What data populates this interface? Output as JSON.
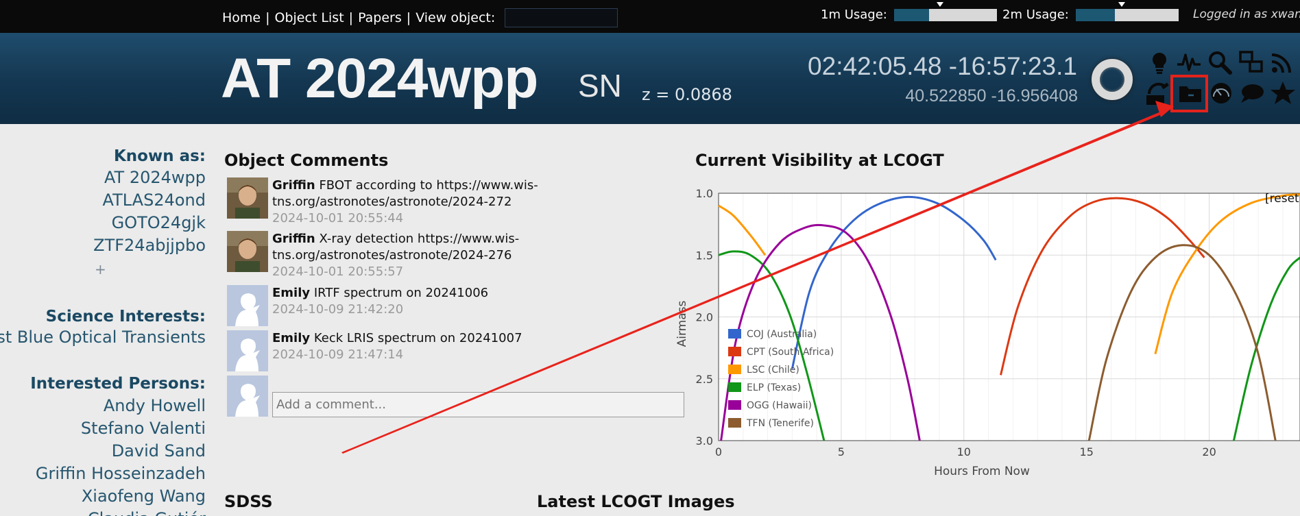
{
  "topbar": {
    "nav": [
      {
        "label": "Home"
      },
      {
        "label": "Object List"
      },
      {
        "label": "Papers"
      },
      {
        "label": "View object:"
      }
    ],
    "view_object_value": "",
    "usage": [
      {
        "label": "1m Usage:",
        "fraction": 0.34,
        "marker": 0.45
      },
      {
        "label": "2m Usage:",
        "fraction": 0.38,
        "marker": 0.45
      }
    ],
    "logged_in": "Logged in as xwang"
  },
  "header": {
    "object_name": "AT 2024wpp",
    "object_type": "SN",
    "redshift": "z = 0.0868",
    "coords_sexagesimal": "02:42:05.48 -16:57:23.1",
    "coords_degrees": "40.522850 -16.956408",
    "icons": [
      "lightbulb-icon",
      "lightcurve-icon",
      "search-icon",
      "finder-icon",
      "rss-icon",
      "telescope-icon",
      "folder-icon",
      "airmass-icon",
      "comment-icon",
      "star-icon"
    ]
  },
  "sidebar": {
    "known_as_title": "Known as:",
    "known_as": [
      "AT 2024wpp",
      "ATLAS24ond",
      "GOTO24gjk",
      "ZTF24abjjpbo"
    ],
    "add_label": "+",
    "science_title": "Science Interests:",
    "science": "Fast Blue Optical Transients",
    "persons_title": "Interested Persons:",
    "persons": [
      "Andy Howell",
      "Stefano Valenti",
      "David Sand",
      "Griffin Hosseinzadeh",
      "Xiaofeng Wang",
      "Claudia Gutiér"
    ]
  },
  "comments": {
    "title": "Object Comments",
    "items": [
      {
        "author": "Griffin",
        "text": "FBOT according to https://www.wis-tns.org/astronotes/astronote/2024-272",
        "time": "2024-10-01 20:55:44",
        "avatar": "photo"
      },
      {
        "author": "Griffin",
        "text": "X-ray detection https://www.wis-tns.org/astronotes/astronote/2024-276",
        "time": "2024-10-01 20:55:57",
        "avatar": "photo"
      },
      {
        "author": "Emily",
        "text": "IRTF spectrum on 20241006",
        "time": "2024-10-09 21:42:20",
        "avatar": "default"
      },
      {
        "author": "Emily",
        "text": "Keck LRIS spectrum on 20241007",
        "time": "2024-10-09 21:47:14",
        "avatar": "default"
      }
    ],
    "add_placeholder": "Add a comment..."
  },
  "visibility": {
    "title": "Current Visibility at LCOGT",
    "reset_label": "[reset"
  },
  "sections": {
    "sdss": "SDSS",
    "lcogt_images": "Latest LCOGT Images"
  },
  "chart_data": {
    "type": "line",
    "xlabel": "Hours From Now",
    "ylabel": "Airmass",
    "xlim": [
      0,
      23.7
    ],
    "ylim": [
      3.0,
      1.0
    ],
    "y_inverted": true,
    "xticks": [
      "0",
      "5",
      "10",
      "15",
      "20"
    ],
    "xtick_values": [
      0,
      5,
      10,
      15,
      20
    ],
    "yticks": [
      "1.0",
      "1.5",
      "2.0",
      "2.5",
      "3.0"
    ],
    "ytick_values": [
      1.0,
      1.5,
      2.0,
      2.5,
      3.0
    ],
    "grid": true,
    "legend_position": "left-bottom",
    "series": [
      {
        "name": "COJ (Australia)",
        "color": "#3366cc",
        "segments": [
          [
            [
              3.0,
              2.42
            ],
            [
              3.7,
              1.8
            ],
            [
              4.5,
              1.46
            ],
            [
              5.5,
              1.22
            ],
            [
              6.5,
              1.09
            ],
            [
              7.7,
              1.03
            ],
            [
              8.9,
              1.08
            ],
            [
              10.0,
              1.22
            ],
            [
              10.8,
              1.38
            ],
            [
              11.3,
              1.54
            ]
          ]
        ]
      },
      {
        "name": "CPT (South Africa)",
        "color": "#dc3912",
        "segments": [
          [
            [
              11.5,
              2.47
            ],
            [
              12.2,
              1.92
            ],
            [
              13.2,
              1.46
            ],
            [
              14.3,
              1.19
            ],
            [
              15.3,
              1.07
            ],
            [
              16.3,
              1.04
            ],
            [
              17.3,
              1.08
            ],
            [
              18.3,
              1.2
            ],
            [
              19.2,
              1.38
            ],
            [
              19.8,
              1.52
            ]
          ]
        ]
      },
      {
        "name": "LSC (Chile)",
        "color": "#ff9900",
        "segments": [
          [
            [
              0,
              1.1
            ],
            [
              0.6,
              1.18
            ],
            [
              1.3,
              1.34
            ],
            [
              1.9,
              1.5
            ]
          ],
          [
            [
              17.8,
              2.3
            ],
            [
              18.5,
              1.8
            ],
            [
              19.5,
              1.45
            ],
            [
              20.5,
              1.22
            ],
            [
              21.7,
              1.08
            ],
            [
              23.0,
              1.02
            ],
            [
              23.7,
              1.01
            ]
          ]
        ]
      },
      {
        "name": "ELP (Texas)",
        "color": "#109618",
        "segments": [
          [
            [
              0,
              1.5
            ],
            [
              0.6,
              1.47
            ],
            [
              1.3,
              1.5
            ],
            [
              2.1,
              1.65
            ],
            [
              2.9,
              1.98
            ],
            [
              3.6,
              2.45
            ],
            [
              4.3,
              3.0
            ]
          ],
          [
            [
              21.0,
              3.0
            ],
            [
              21.7,
              2.4
            ],
            [
              22.5,
              1.9
            ],
            [
              23.2,
              1.62
            ],
            [
              23.7,
              1.52
            ]
          ]
        ]
      },
      {
        "name": "OGG (Hawaii)",
        "color": "#990099",
        "segments": [
          [
            [
              0.1,
              3.0
            ],
            [
              0.7,
              2.2
            ],
            [
              1.5,
              1.7
            ],
            [
              2.5,
              1.4
            ],
            [
              3.5,
              1.28
            ],
            [
              4.3,
              1.26
            ],
            [
              5.2,
              1.32
            ],
            [
              6.1,
              1.55
            ],
            [
              7.0,
              1.98
            ],
            [
              7.7,
              2.5
            ],
            [
              8.2,
              3.0
            ]
          ]
        ]
      },
      {
        "name": "TFN (Tenerife)",
        "color": "#8c5c2f",
        "segments": [
          [
            [
              15.1,
              3.0
            ],
            [
              15.8,
              2.35
            ],
            [
              16.8,
              1.8
            ],
            [
              17.8,
              1.52
            ],
            [
              18.9,
              1.42
            ],
            [
              20.0,
              1.5
            ],
            [
              21.1,
              1.82
            ],
            [
              22.0,
              2.3
            ],
            [
              22.7,
              3.0
            ]
          ]
        ]
      }
    ]
  }
}
